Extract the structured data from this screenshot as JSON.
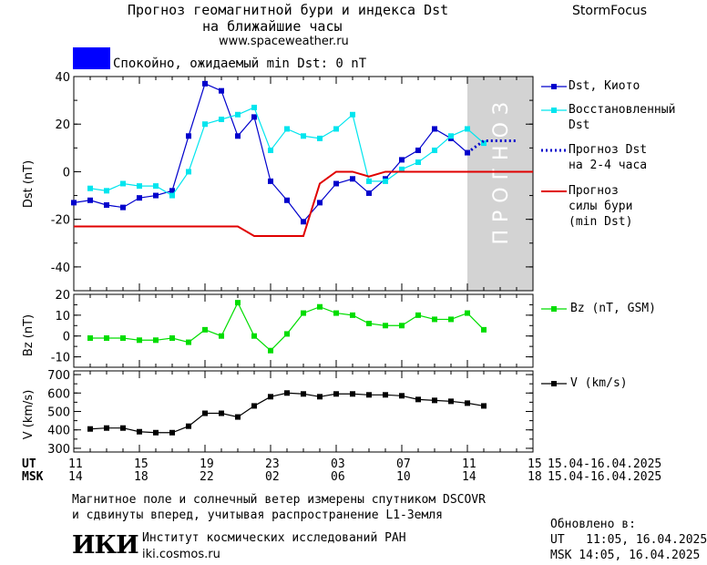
{
  "header": {
    "title_line1": "Прогноз геомагнитной бури и индекса Dst",
    "title_line2": "на ближайшие часы",
    "url": "www.spaceweather.ru",
    "brand": "StormFocus"
  },
  "status": {
    "text": "Спокойно, ожидаемый min Dst: 0 nT",
    "color": "#0000ff"
  },
  "forecast_band_label": "ПРОГНОЗ",
  "legend": {
    "dst_kyoto": "Dst, Киото",
    "dst_restored_1": "Восстановленный",
    "dst_restored_2": "Dst",
    "dst_forecast_1": "Прогноз Dst",
    "dst_forecast_2": "на 2-4 часа",
    "storm_1": "Прогноз",
    "storm_2": "силы бури",
    "storm_3": "(min Dst)",
    "bz": "Bz (nT, GSM)",
    "v": "V (km/s)"
  },
  "time_axis": {
    "ut_label": "UT",
    "msk_label": "MSK",
    "ut_ticks": [
      "11",
      "15",
      "19",
      "23",
      "03",
      "07",
      "11",
      "15"
    ],
    "msk_ticks": [
      "14",
      "18",
      "22",
      "02",
      "06",
      "10",
      "14",
      "18"
    ],
    "date_range_ut": "15.04-16.04.2025",
    "date_range_msk": "15.04-16.04.2025"
  },
  "footer": {
    "note_line1": "Магнитное поле и солнечный ветер измерены спутником DSCOVR",
    "note_line2": "и сдвинуты вперед, учитывая распространение L1-Земля",
    "logo": "ИКИ",
    "institute": "Институт космических исследований РАН",
    "site": "iki.cosmos.ru",
    "updated_label": "Обновлено в:",
    "updated_ut": "UT   11:05, 16.04.2025",
    "updated_msk": "MSK 14:05, 16.04.2025"
  },
  "chart_data": [
    {
      "type": "line",
      "ylabel": "Dst (nT)",
      "ylim": [
        -50,
        40
      ],
      "yticks": [
        -40,
        -20,
        0,
        20,
        40
      ],
      "xlim": [
        0,
        28
      ],
      "x_units": "hours after 15.04.2025 11:00 UT",
      "forecast_region": [
        24,
        28
      ],
      "series": [
        {
          "name": "Dst, Киото",
          "color": "#0000cc",
          "marker": "square",
          "x": [
            0,
            1,
            2,
            3,
            4,
            5,
            6,
            7,
            8,
            9,
            10,
            11,
            12,
            13,
            14,
            15,
            16,
            17,
            18,
            19,
            20,
            21,
            22,
            23,
            24
          ],
          "values": [
            -13,
            -12,
            -14,
            -15,
            -11,
            -10,
            -8,
            15,
            37,
            34,
            15,
            23,
            -4,
            -12,
            -21,
            -13,
            -5,
            -3,
            -9,
            -3,
            5,
            9,
            18,
            14,
            8
          ]
        },
        {
          "name": "Восстановленный Dst",
          "color": "#00e5ee",
          "marker": "square",
          "x": [
            1,
            2,
            3,
            4,
            5,
            6,
            7,
            8,
            9,
            10,
            11,
            12,
            13,
            14,
            15,
            16,
            17,
            18,
            19,
            20,
            21,
            22,
            23,
            24,
            25
          ],
          "values": [
            -7,
            -8,
            -5,
            -6,
            -6,
            -10,
            0,
            20,
            22,
            24,
            27,
            9,
            18,
            15,
            14,
            18,
            24,
            -4,
            -4,
            1,
            4,
            9,
            15,
            18,
            12
          ]
        },
        {
          "name": "Прогноз Dst на 2-4 часа",
          "color": "#0000cc",
          "style": "dotted",
          "x": [
            24,
            25,
            26,
            27
          ],
          "values": [
            8,
            13,
            13,
            13
          ]
        },
        {
          "name": "Прогноз силы бури (min Dst)",
          "color": "#e00000",
          "style": "step",
          "x": [
            0,
            10,
            11,
            14,
            15,
            16,
            17,
            18,
            19,
            20,
            28
          ],
          "values": [
            -23,
            -23,
            -27,
            -27,
            -5,
            0,
            0,
            -2,
            0,
            0,
            0
          ]
        }
      ]
    },
    {
      "type": "line",
      "ylabel": "Bz (nT)",
      "ylim": [
        -15,
        20
      ],
      "yticks": [
        -10,
        0,
        10,
        20
      ],
      "series": [
        {
          "name": "Bz (nT, GSM)",
          "color": "#00dd00",
          "marker": "square",
          "x": [
            1,
            2,
            3,
            4,
            5,
            6,
            7,
            8,
            9,
            10,
            11,
            12,
            13,
            14,
            15,
            16,
            17,
            18,
            19,
            20,
            21,
            22,
            23,
            24,
            25
          ],
          "values": [
            -1,
            -1,
            -1,
            -2,
            -2,
            -1,
            -3,
            3,
            0,
            16,
            0,
            -7,
            1,
            11,
            14,
            11,
            10,
            6,
            5,
            5,
            10,
            8,
            8,
            11,
            3
          ]
        }
      ]
    },
    {
      "type": "line",
      "ylabel": "V (km/s)",
      "ylim": [
        280,
        720
      ],
      "yticks": [
        300,
        400,
        500,
        600,
        700
      ],
      "series": [
        {
          "name": "V (km/s)",
          "color": "#000000",
          "marker": "square",
          "x": [
            1,
            2,
            3,
            4,
            5,
            6,
            7,
            8,
            9,
            10,
            11,
            12,
            13,
            14,
            15,
            16,
            17,
            18,
            19,
            20,
            21,
            22,
            23,
            24,
            25
          ],
          "values": [
            405,
            410,
            410,
            390,
            385,
            385,
            420,
            490,
            490,
            470,
            530,
            580,
            600,
            595,
            580,
            595,
            595,
            590,
            590,
            585,
            565,
            560,
            555,
            545,
            530
          ]
        }
      ]
    }
  ]
}
